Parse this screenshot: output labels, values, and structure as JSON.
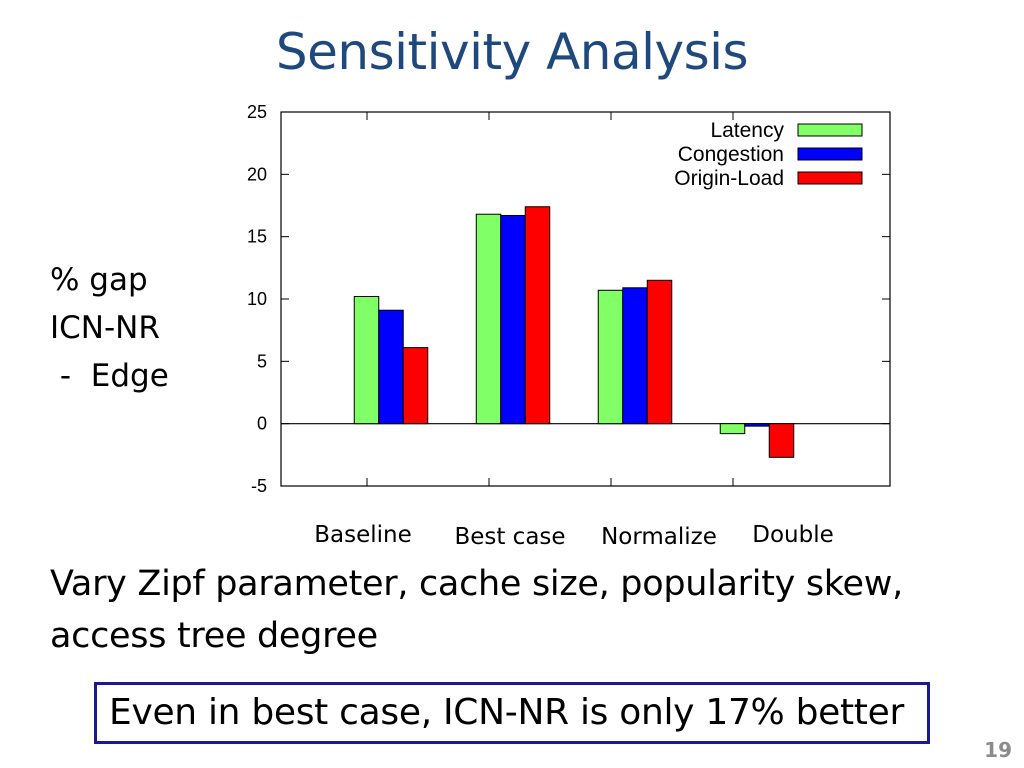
{
  "slide": {
    "title": "Sensitivity Analysis",
    "ylabel_lines": [
      "% gap",
      "ICN-NR",
      " -  Edge"
    ],
    "body_line1": "Vary Zipf parameter, cache size, popularity skew,",
    "body_line2": "access tree degree",
    "callout": "Even in best case, ICN-NR is only 17% better",
    "page_number": "19"
  },
  "chart_data": {
    "type": "bar",
    "categories": [
      "Baseline",
      "Best  case",
      "Normalize",
      "Double"
    ],
    "series": [
      {
        "name": "Latency",
        "color": "#80ff66",
        "values": [
          10.2,
          16.8,
          10.7,
          -0.8
        ]
      },
      {
        "name": "Congestion",
        "color": "#0000ff",
        "values": [
          9.1,
          16.7,
          10.9,
          -0.2
        ]
      },
      {
        "name": "Origin-Load",
        "color": "#ff0000",
        "values": [
          6.1,
          17.4,
          11.5,
          -2.7
        ]
      }
    ],
    "ylim": [
      -5,
      25
    ],
    "yticks": [
      -5,
      0,
      5,
      10,
      15,
      20,
      25
    ],
    "legend_position": "top-right",
    "grid": false
  }
}
